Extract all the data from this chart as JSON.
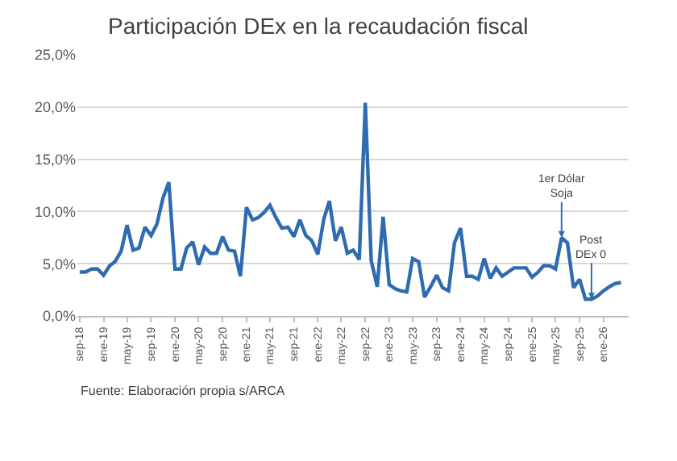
{
  "chart_data": {
    "type": "line",
    "title": "Participación DEx en la recaudación fiscal",
    "x": [
      "2018-09",
      "2018-10",
      "2018-11",
      "2018-12",
      "2019-01",
      "2019-02",
      "2019-03",
      "2019-04",
      "2019-05",
      "2019-06",
      "2019-07",
      "2019-08",
      "2019-09",
      "2019-10",
      "2019-11",
      "2019-12",
      "2020-01",
      "2020-02",
      "2020-03",
      "2020-04",
      "2020-05",
      "2020-06",
      "2020-07",
      "2020-08",
      "2020-09",
      "2020-10",
      "2020-11",
      "2020-12",
      "2021-01",
      "2021-02",
      "2021-03",
      "2021-04",
      "2021-05",
      "2021-06",
      "2021-07",
      "2021-08",
      "2021-09",
      "2021-10",
      "2021-11",
      "2021-12",
      "2022-01",
      "2022-02",
      "2022-03",
      "2022-04",
      "2022-05",
      "2022-06",
      "2022-07",
      "2022-08",
      "2022-09",
      "2022-10",
      "2022-11",
      "2022-12",
      "2023-01",
      "2023-02",
      "2023-03",
      "2023-04",
      "2023-05",
      "2023-06",
      "2023-07",
      "2023-08",
      "2023-09",
      "2023-10",
      "2023-11",
      "2023-12",
      "2024-01",
      "2024-02",
      "2024-03",
      "2024-04",
      "2024-05",
      "2024-06",
      "2024-07",
      "2024-08",
      "2024-09",
      "2024-10",
      "2024-11",
      "2024-12",
      "2025-01",
      "2025-02",
      "2025-03",
      "2025-04",
      "2025-05",
      "2025-06",
      "2025-07",
      "2025-08",
      "2025-09",
      "2025-10",
      "2025-11",
      "2025-12",
      "2026-01",
      "2026-02",
      "2026-03",
      "2026-04"
    ],
    "series": [
      {
        "color": "#2e6bb0",
        "values": [
          4.2,
          4.2,
          4.5,
          4.5,
          3.9,
          4.8,
          5.2,
          6.2,
          8.7,
          6.3,
          6.5,
          8.5,
          7.7,
          8.8,
          11.3,
          12.8,
          4.5,
          4.5,
          6.5,
          7.1,
          4.9,
          6.6,
          6.0,
          6.0,
          7.6,
          6.3,
          6.2,
          3.8,
          10.4,
          9.2,
          9.4,
          9.9,
          10.6,
          9.4,
          8.4,
          8.5,
          7.6,
          9.2,
          7.7,
          7.2,
          5.9,
          9.3,
          11.0,
          7.2,
          8.5,
          6.0,
          6.3,
          5.4,
          20.4,
          5.3,
          2.8,
          9.5,
          3.0,
          2.6,
          2.4,
          2.3,
          5.5,
          5.2,
          1.8,
          2.8,
          3.9,
          2.7,
          2.4,
          7.0,
          8.4,
          3.8,
          3.8,
          3.5,
          5.5,
          3.6,
          4.6,
          3.8,
          4.2,
          4.6,
          4.6,
          4.6,
          3.7,
          4.2,
          4.8,
          4.8,
          4.5,
          7.5,
          7.0,
          2.7,
          3.5,
          1.6,
          1.6,
          1.9,
          2.4,
          2.8,
          3.1,
          3.2
        ]
      }
    ],
    "ylim": [
      0,
      25
    ],
    "yticks": [
      {
        "value": 0,
        "label": "0,0%"
      },
      {
        "value": 5,
        "label": "5,0%"
      },
      {
        "value": 10,
        "label": "10,0%"
      },
      {
        "value": 15,
        "label": "15,0%"
      },
      {
        "value": 20,
        "label": "20,0%"
      },
      {
        "value": 25,
        "label": "25,0%"
      }
    ],
    "xlim": [
      "2018-08-20",
      "2026-05-10"
    ],
    "xticks": [
      {
        "value": "2018-09",
        "label": "sep-18"
      },
      {
        "value": "2019-01",
        "label": "ene-19"
      },
      {
        "value": "2019-05",
        "label": "may-19"
      },
      {
        "value": "2019-09",
        "label": "sep-19"
      },
      {
        "value": "2020-01",
        "label": "ene-20"
      },
      {
        "value": "2020-05",
        "label": "may-20"
      },
      {
        "value": "2020-09",
        "label": "sep-20"
      },
      {
        "value": "2021-01",
        "label": "ene-21"
      },
      {
        "value": "2021-05",
        "label": "may-21"
      },
      {
        "value": "2021-09",
        "label": "sep-21"
      },
      {
        "value": "2022-01",
        "label": "ene-22"
      },
      {
        "value": "2022-05",
        "label": "may-22"
      },
      {
        "value": "2022-09",
        "label": "sep-22"
      },
      {
        "value": "2023-01",
        "label": "ene-23"
      },
      {
        "value": "2023-05",
        "label": "may-23"
      },
      {
        "value": "2023-09",
        "label": "sep-23"
      },
      {
        "value": "2024-01",
        "label": "ene-24"
      },
      {
        "value": "2024-05",
        "label": "may-24"
      },
      {
        "value": "2024-09",
        "label": "sep-24"
      },
      {
        "value": "2025-01",
        "label": "ene-25"
      },
      {
        "value": "2025-05",
        "label": "may-25"
      },
      {
        "value": "2025-09",
        "label": "sep-25"
      },
      {
        "value": "2026-01",
        "label": "ene-26"
      }
    ],
    "grid": "y",
    "marker": "none",
    "line_style": "solid",
    "annotations": [
      {
        "text": "1er Dólar\nSoja",
        "x": "2025-06",
        "y": 7.5
      },
      {
        "text": "Post\nDEx 0",
        "x": "2025-11",
        "y": 1.6
      },
      "Fuente: Elaboración propia s/ARCA"
    ]
  }
}
